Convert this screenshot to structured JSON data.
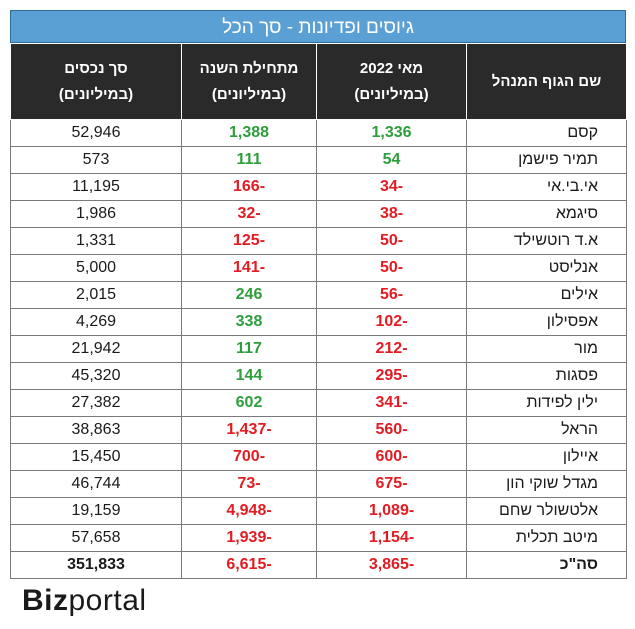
{
  "title": "גיוסים ופדיונות - סך הכל",
  "headers": {
    "name": "שם הגוף המנהל",
    "may_line1": "מאי 2022",
    "may_line2": "(במיליונים)",
    "ytd_line1": "מתחילת השנה",
    "ytd_line2": "(במיליונים)",
    "assets_line1": "סך נכסים",
    "assets_line2": "(במיליונים)"
  },
  "rows": [
    {
      "name": "קסם",
      "may": "1,336",
      "ytd": "1,388",
      "assets": "52,946"
    },
    {
      "name": "תמיר פישמן",
      "may": "54",
      "ytd": "111",
      "assets": "573"
    },
    {
      "name": "אי.בי.אי",
      "may": "-34",
      "ytd": "-166",
      "assets": "11,195"
    },
    {
      "name": "סיגמא",
      "may": "-38",
      "ytd": "-32",
      "assets": "1,986"
    },
    {
      "name": "א.ד רוטשילד",
      "may": "-50",
      "ytd": "-125",
      "assets": "1,331"
    },
    {
      "name": "אנליסט",
      "may": "-50",
      "ytd": "-141",
      "assets": "5,000"
    },
    {
      "name": "אילים",
      "may": "-56",
      "ytd": "246",
      "assets": "2,015"
    },
    {
      "name": "אפסילון",
      "may": "-102",
      "ytd": "338",
      "assets": "4,269"
    },
    {
      "name": "מור",
      "may": "-212",
      "ytd": "117",
      "assets": "21,942"
    },
    {
      "name": "פסגות",
      "may": "-295",
      "ytd": "144",
      "assets": "45,320"
    },
    {
      "name": "ילין לפידות",
      "may": "-341",
      "ytd": "602",
      "assets": "27,382"
    },
    {
      "name": "הראל",
      "may": "-560",
      "ytd": "-1,437",
      "assets": "38,863"
    },
    {
      "name": "איילון",
      "may": "-600",
      "ytd": "-700",
      "assets": "15,450"
    },
    {
      "name": "מגדל שוקי הון",
      "may": "-675",
      "ytd": "-73",
      "assets": "46,744"
    },
    {
      "name": "אלטשולר שחם",
      "may": "-1,089",
      "ytd": "-4,948",
      "assets": "19,159"
    },
    {
      "name": "מיטב תכלית",
      "may": "-1,154",
      "ytd": "-1,939",
      "assets": "57,658"
    }
  ],
  "total": {
    "name": "סה\"כ",
    "may": "-3,865",
    "ytd": "-6,615",
    "assets": "351,833"
  },
  "colors": {
    "positive": "#2e9e3c",
    "negative": "#e31b23",
    "title_bg": "#5ba0d4",
    "header_bg": "#2a2a2a"
  },
  "logo": {
    "bold": "Biz",
    "light": "portal"
  }
}
